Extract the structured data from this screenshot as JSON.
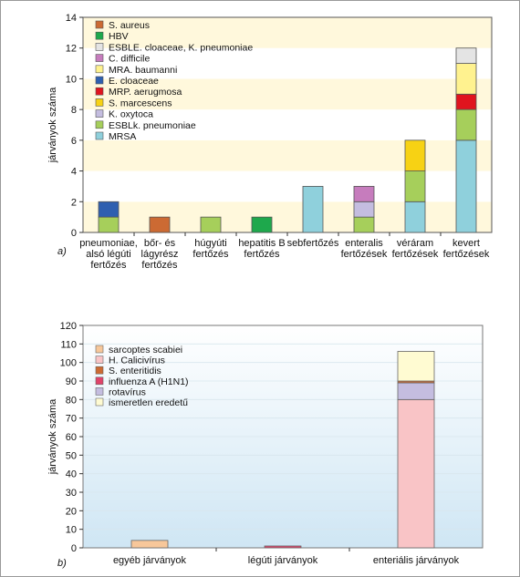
{
  "chart_data": [
    {
      "type": "bar",
      "stacked": true,
      "panel_label": "a)",
      "ylabel": "járványok száma",
      "ylim": [
        0,
        14
      ],
      "yticks": [
        0,
        2,
        4,
        6,
        8,
        10,
        12,
        14
      ],
      "categories": [
        [
          "pneumoniae,",
          "alsó légúti",
          "fertőzés"
        ],
        [
          "bőr- és",
          "lágyrész",
          "fertőzés"
        ],
        [
          "húgyúti",
          "fertőzés"
        ],
        [
          "hepatitis B",
          "fertőzés"
        ],
        [
          "sebfertőzés"
        ],
        [
          "enteralis",
          "fertőzések"
        ],
        [
          "véráram",
          "fertőzések"
        ],
        [
          "kevert",
          "fertőzések"
        ]
      ],
      "series": [
        {
          "name": "MRSA",
          "color": "#8fd0dc",
          "values": [
            0,
            0,
            0,
            0,
            3,
            0,
            2,
            6
          ]
        },
        {
          "name": "ESBLk. pneumoniae",
          "color": "#a6cf5b",
          "values": [
            1,
            0,
            1,
            0,
            0,
            1,
            2,
            2
          ]
        },
        {
          "name": "K. oxytoca",
          "color": "#c4bde0",
          "values": [
            0,
            0,
            0,
            0,
            0,
            1,
            0,
            0
          ]
        },
        {
          "name": "S. marcescens",
          "color": "#f7d214",
          "values": [
            0,
            0,
            0,
            0,
            0,
            0,
            2,
            0
          ]
        },
        {
          "name": "MRP. aerugmosa",
          "color": "#e0141e",
          "values": [
            0,
            0,
            0,
            0,
            0,
            0,
            0,
            1
          ]
        },
        {
          "name": "E. cloaceae",
          "color": "#2e5fb0",
          "values": [
            1,
            0,
            0,
            0,
            0,
            0,
            0,
            0
          ]
        },
        {
          "name": "MRA. baumanni",
          "color": "#fff28f",
          "values": [
            0,
            0,
            0,
            0,
            0,
            0,
            0,
            2
          ]
        },
        {
          "name": "C. difficile",
          "color": "#c67cbd",
          "values": [
            0,
            0,
            0,
            0,
            0,
            1,
            0,
            0
          ]
        },
        {
          "name": "ESBLE. cloaceae, K. pneumoniae",
          "color": "#e4e4e4",
          "values": [
            0,
            0,
            0,
            0,
            0,
            0,
            0,
            1
          ]
        },
        {
          "name": "HBV",
          "color": "#1ea84c",
          "values": [
            0,
            0,
            0,
            1,
            0,
            0,
            0,
            0
          ]
        },
        {
          "name": "S. aureus",
          "color": "#cc6a33",
          "values": [
            0,
            1,
            0,
            0,
            0,
            0,
            0,
            0
          ]
        }
      ],
      "legend_position": "top-left",
      "grid": "alternating horizontal bands"
    },
    {
      "type": "bar",
      "stacked": true,
      "panel_label": "b)",
      "ylabel": "járványok száma",
      "ylim": [
        0,
        120
      ],
      "yticks": [
        0,
        10,
        20,
        30,
        40,
        50,
        60,
        70,
        80,
        90,
        100,
        110,
        120
      ],
      "categories": [
        [
          "egyéb járványok"
        ],
        [
          "légúti járványok"
        ],
        [
          "enteriális járványok"
        ]
      ],
      "series": [
        {
          "name": "sarcoptes scabiei",
          "color": "#f7c79a",
          "values": [
            4,
            0,
            0
          ]
        },
        {
          "name": "H. Calicivírus",
          "color": "#f9c4c6",
          "values": [
            0,
            0,
            80
          ]
        },
        {
          "name": "S. enteritidis",
          "color": "#cc6a33",
          "values": [
            0,
            0,
            1
          ]
        },
        {
          "name": "influenza A (H1N1)",
          "color": "#e0436a",
          "values": [
            0,
            1,
            0
          ]
        },
        {
          "name": "rotavírus",
          "color": "#c4bde0",
          "values": [
            0,
            0,
            9
          ]
        },
        {
          "name": "ismeretlen eredetű",
          "color": "#fffbd2",
          "values": [
            0,
            0,
            16
          ]
        }
      ],
      "legend_position": "top-left",
      "legend_order": [
        0,
        1,
        2,
        3,
        4,
        5
      ],
      "grid": "vertical gradient background"
    }
  ]
}
